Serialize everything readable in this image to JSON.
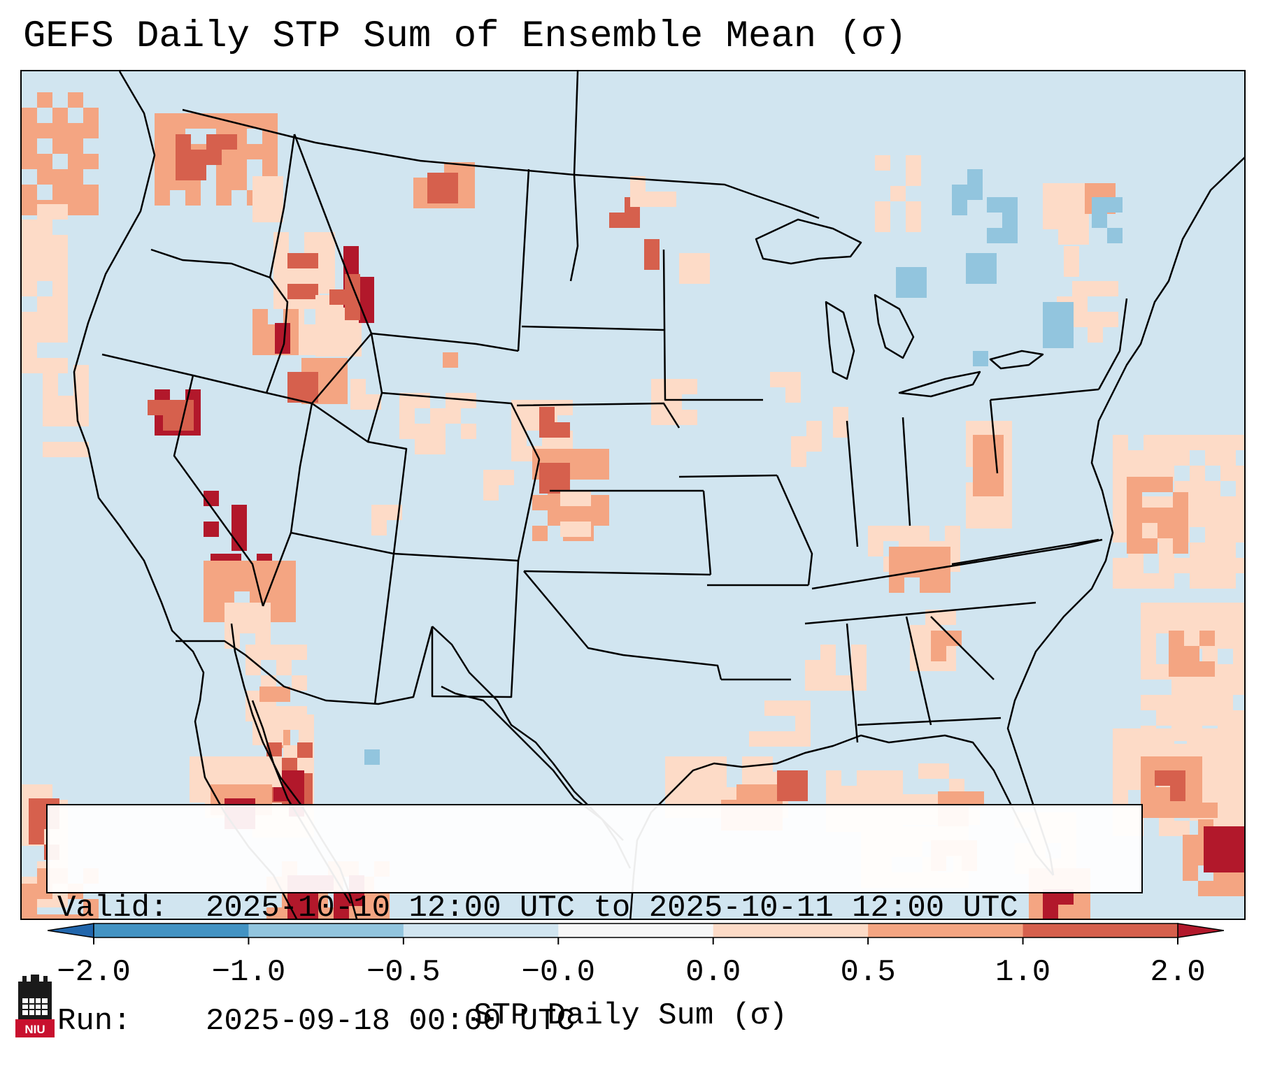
{
  "title": "GEFS Daily STP Sum of Ensemble Mean (σ)",
  "info": {
    "valid_label": "Valid:",
    "valid_value": "2025-10-10 12:00 UTC to 2025-10-11 12:00 UTC",
    "run_label": "Run:",
    "run_value": "2025-09-18 00:00 UTC"
  },
  "colorbar": {
    "label": "STP Daily Sum (σ)",
    "ticks": [
      "−2.0",
      "−1.0",
      "−0.5",
      "−0.0",
      "0.0",
      "0.5",
      "1.0",
      "2.0"
    ],
    "colors": [
      "#4393c3",
      "#92c5de",
      "#d1e5f0",
      "#f7f7f7",
      "#fddbc7",
      "#f4a582",
      "#d6604d"
    ],
    "extend_low_color": "#2166ac",
    "extend_high_color": "#b2182b"
  },
  "map": {
    "background_color": "#d1e5f0",
    "region": "Continental United States",
    "colors": {
      "light": "#fddbc7",
      "mid": "#f4a582",
      "strong": "#d6604d",
      "max": "#b2182b",
      "neg": "#92c5de"
    }
  },
  "logo": {
    "text": "NIU",
    "icon": "niu-logo-icon"
  }
}
